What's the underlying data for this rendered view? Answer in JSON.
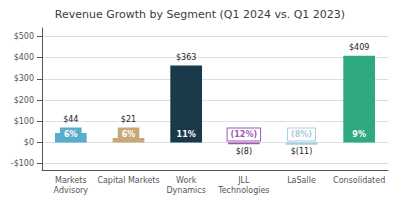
{
  "chart_data": {
    "type": "bar",
    "title": "Revenue Growth by Segment (Q1 2024 vs. Q1 2023)",
    "categories": [
      "Markets\nAdvisory",
      "Capital Markets",
      "Work\nDynamics",
      "JLL\nTechnologies",
      "LaSalle",
      "Consolidated"
    ],
    "values": [
      44,
      21,
      363,
      -8,
      -11,
      409
    ],
    "colors": [
      "#5aaccc",
      "#c8a878",
      "#1a3a4a",
      "#9b59b6",
      "#a8cce0",
      "#2eaa7e"
    ],
    "data_labels": true,
    "value_labels": [
      "$44",
      "$21",
      "$363",
      "$(8)",
      "$(11)",
      "$409"
    ],
    "annotations": [
      "6%",
      "6%",
      "11%",
      "(12%)",
      "(8%)",
      "9%"
    ],
    "ylim": [
      -130,
      540
    ],
    "yticks": [
      {
        "value": -100,
        "label": "-$100"
      },
      {
        "value": 0,
        "label": "$0"
      },
      {
        "value": 100,
        "label": "$100"
      },
      {
        "value": 200,
        "label": "$200"
      },
      {
        "value": 300,
        "label": "$300"
      },
      {
        "value": 400,
        "label": "$400"
      },
      {
        "value": 500,
        "label": "$500"
      }
    ],
    "grid": true
  }
}
